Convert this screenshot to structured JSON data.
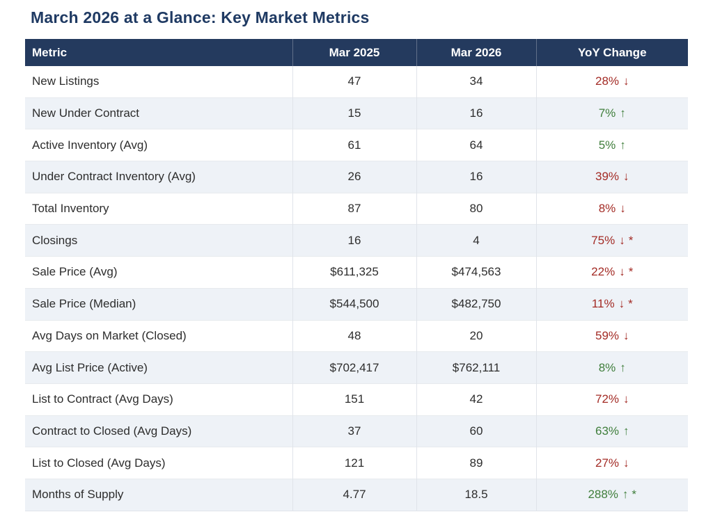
{
  "page": {
    "title": "March 2026 at a Glance: Key Market Metrics"
  },
  "table": {
    "columns": [
      "Metric",
      "Mar 2025",
      "Mar 2026",
      "YoY Change"
    ],
    "arrows": {
      "up": "↑",
      "down": "↓"
    },
    "colors": {
      "header_bg": "#243a5e",
      "header_text": "#ffffff",
      "title_text": "#1f3a63",
      "row_alt_bg": "#eef2f7",
      "body_text": "#2d2d2d",
      "positive": "#3f7e3b",
      "negative": "#a32b25"
    },
    "rows": [
      {
        "metric": "New Listings",
        "mar2025": "47",
        "mar2026": "34",
        "yoy": "28%",
        "dir": "down",
        "note": ""
      },
      {
        "metric": "New Under Contract",
        "mar2025": "15",
        "mar2026": "16",
        "yoy": "7%",
        "dir": "up",
        "note": ""
      },
      {
        "metric": "Active Inventory (Avg)",
        "mar2025": "61",
        "mar2026": "64",
        "yoy": "5%",
        "dir": "up",
        "note": ""
      },
      {
        "metric": "Under Contract Inventory (Avg)",
        "mar2025": "26",
        "mar2026": "16",
        "yoy": "39%",
        "dir": "down",
        "note": ""
      },
      {
        "metric": "Total Inventory",
        "mar2025": "87",
        "mar2026": "80",
        "yoy": "8%",
        "dir": "down",
        "note": ""
      },
      {
        "metric": "Closings",
        "mar2025": "16",
        "mar2026": "4",
        "yoy": "75%",
        "dir": "down",
        "note": "*"
      },
      {
        "metric": "Sale Price (Avg)",
        "mar2025": "$611,325",
        "mar2026": "$474,563",
        "yoy": "22%",
        "dir": "down",
        "note": "*"
      },
      {
        "metric": "Sale Price (Median)",
        "mar2025": "$544,500",
        "mar2026": "$482,750",
        "yoy": "11%",
        "dir": "down",
        "note": "*"
      },
      {
        "metric": "Avg Days on Market (Closed)",
        "mar2025": "48",
        "mar2026": "20",
        "yoy": "59%",
        "dir": "down",
        "note": ""
      },
      {
        "metric": "Avg List Price (Active)",
        "mar2025": "$702,417",
        "mar2026": "$762,111",
        "yoy": "8%",
        "dir": "up",
        "note": ""
      },
      {
        "metric": "List to Contract (Avg Days)",
        "mar2025": "151",
        "mar2026": "42",
        "yoy": "72%",
        "dir": "down",
        "note": ""
      },
      {
        "metric": "Contract to Closed (Avg Days)",
        "mar2025": "37",
        "mar2026": "60",
        "yoy": "63%",
        "dir": "up",
        "note": ""
      },
      {
        "metric": "List to Closed (Avg Days)",
        "mar2025": "121",
        "mar2026": "89",
        "yoy": "27%",
        "dir": "down",
        "note": ""
      },
      {
        "metric": "Months of Supply",
        "mar2025": "4.77",
        "mar2026": "18.5",
        "yoy": "288%",
        "dir": "up",
        "note": "*"
      }
    ]
  },
  "chart_data": {
    "type": "table",
    "title": "March 2026 at a Glance: Key Market Metrics",
    "columns": [
      "Metric",
      "Mar 2025",
      "Mar 2026",
      "YoY Change"
    ],
    "rows": [
      [
        "New Listings",
        "47",
        "34",
        "28% ↓"
      ],
      [
        "New Under Contract",
        "15",
        "16",
        "7% ↑"
      ],
      [
        "Active Inventory (Avg)",
        "61",
        "64",
        "5% ↑"
      ],
      [
        "Under Contract Inventory (Avg)",
        "26",
        "16",
        "39% ↓"
      ],
      [
        "Total Inventory",
        "87",
        "80",
        "8% ↓"
      ],
      [
        "Closings",
        "16",
        "4",
        "75% ↓ *"
      ],
      [
        "Sale Price (Avg)",
        "$611,325",
        "$474,563",
        "22% ↓ *"
      ],
      [
        "Sale Price (Median)",
        "$544,500",
        "$482,750",
        "11% ↓ *"
      ],
      [
        "Avg Days on Market (Closed)",
        "48",
        "20",
        "59% ↓"
      ],
      [
        "Avg List Price (Active)",
        "$702,417",
        "$762,111",
        "8% ↑"
      ],
      [
        "List to Contract (Avg Days)",
        "151",
        "42",
        "72% ↓"
      ],
      [
        "Contract to Closed (Avg Days)",
        "37",
        "60",
        "63% ↑"
      ],
      [
        "List to Closed (Avg Days)",
        "121",
        "89",
        "27% ↓"
      ],
      [
        "Months of Supply",
        "4.77",
        "18.5",
        "288% ↑ *"
      ]
    ]
  }
}
